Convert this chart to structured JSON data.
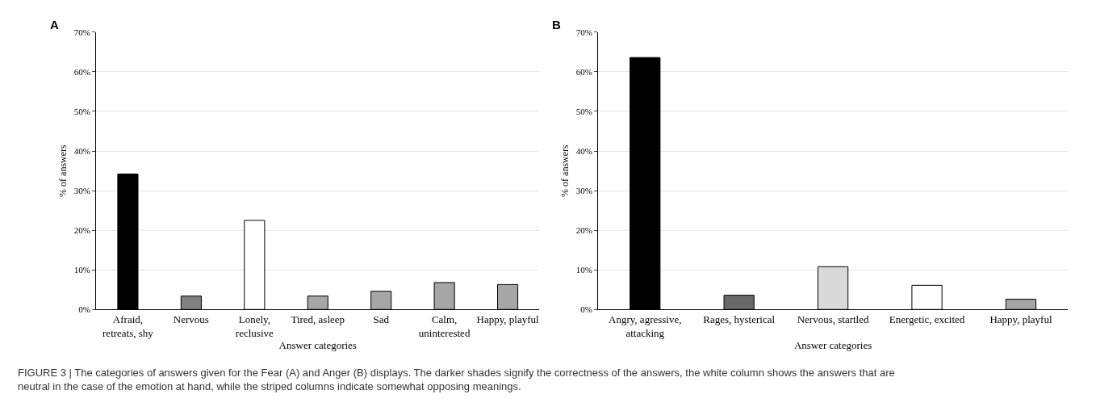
{
  "chart_data": [
    {
      "type": "bar",
      "title": "A",
      "xlabel": "Answer categories",
      "ylabel": "% of answers",
      "categories": [
        "Afraid, retreats, shy",
        "Nervous",
        "Lonely, reclusive",
        "Tired, asleep",
        "Sad",
        "Calm, uninterested",
        "Happy, playful"
      ],
      "values": [
        34.2,
        3.4,
        22.5,
        3.4,
        4.6,
        6.8,
        6.3
      ],
      "colors": [
        "#000000",
        "#808080",
        "#ffffff",
        "#a6a6a6",
        "#a6a6a6",
        "#a6a6a6",
        "#a6a6a6"
      ],
      "ylim": [
        0,
        70
      ],
      "yticks": [
        {
          "value": 0,
          "label": "0%"
        },
        {
          "value": 10,
          "label": "10%"
        },
        {
          "value": 20,
          "label": "20%"
        },
        {
          "value": 30,
          "label": "30%"
        },
        {
          "value": 40,
          "label": "40%"
        },
        {
          "value": 50,
          "label": "50%"
        },
        {
          "value": 60,
          "label": "60%"
        },
        {
          "value": 70,
          "label": "70%"
        }
      ],
      "grid": "y"
    },
    {
      "type": "bar",
      "title": "B",
      "xlabel": "Answer categories",
      "ylabel": "% of answers",
      "categories": [
        "Angry, agressive, attacking",
        "Rages, hysterical",
        "Nervous, startled",
        "Energetic, excited",
        "Happy, playful"
      ],
      "values": [
        63.6,
        3.6,
        10.8,
        6.1,
        2.6
      ],
      "colors": [
        "#000000",
        "#696969",
        "#d9d9d9",
        "#ffffff",
        "#a6a6a6"
      ],
      "ylim": [
        0,
        70
      ],
      "yticks": [
        {
          "value": 0,
          "label": "0%"
        },
        {
          "value": 10,
          "label": "10%"
        },
        {
          "value": 20,
          "label": "20%"
        },
        {
          "value": 30,
          "label": "30%"
        },
        {
          "value": 40,
          "label": "40%"
        },
        {
          "value": 50,
          "label": "50%"
        },
        {
          "value": 60,
          "label": "60%"
        },
        {
          "value": 70,
          "label": "70%"
        }
      ],
      "grid": "y",
      "annotations": [
        "FIGURE 3 | The categories of answers given for the Fear (A) and Anger (B) displays. The darker shades signify the correctness of the answers, the white column shows the answers that are neutral in the case of the emotion at hand, while the striped columns indicate somewhat opposing meanings."
      ]
    }
  ]
}
